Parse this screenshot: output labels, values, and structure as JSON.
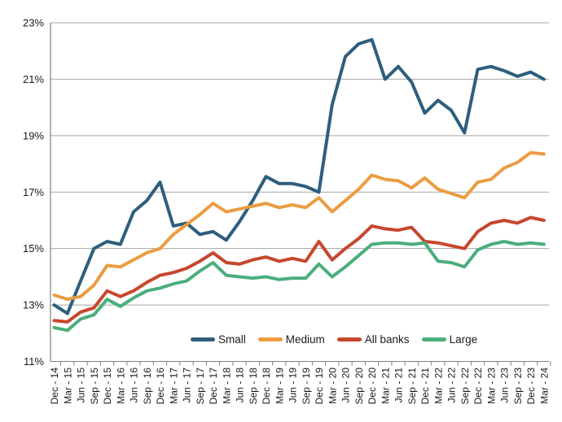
{
  "chart_data": {
    "type": "line",
    "title": "",
    "xlabel": "",
    "ylabel": "",
    "y_axis": {
      "min": 11,
      "max": 23,
      "step": 2,
      "tick_labels": [
        "11%",
        "13%",
        "15%",
        "17%",
        "19%",
        "21%",
        "23%"
      ],
      "format": "percent"
    },
    "grid": true,
    "legend_position": "bottom-center-inside",
    "x_label_rotation": 90,
    "grid_color": "#a6a6a6",
    "axis_color": "#808080",
    "label_color": "#1a1a1a",
    "categories": [
      "Dec - 14",
      "Mar - 15",
      "Jun - 15",
      "Sep - 15",
      "Dec - 15",
      "Mar - 16",
      "Jun - 16",
      "Sep - 16",
      "Dec - 16",
      "Mar - 17",
      "Jun - 17",
      "Sep - 17",
      "Dec - 17",
      "Mar - 18",
      "Jun - 18",
      "Sep - 18",
      "Dec - 18",
      "Mar - 19",
      "Jun - 19",
      "Sep - 19",
      "Dec - 19",
      "Mar - 20",
      "Jun - 20",
      "Sep - 20",
      "Dec - 20",
      "Mar - 21",
      "Jun - 21",
      "Sep - 21",
      "Dec - 21",
      "Mar - 22",
      "Jun - 22",
      "Sep - 22",
      "Dec - 22",
      "Mar - 23",
      "Jun - 23",
      "Sep - 23",
      "Dec - 23",
      "Mar - 24"
    ],
    "series": [
      {
        "name": "Small",
        "color": "#2e5e7e",
        "values": [
          13.0,
          12.7,
          13.85,
          15.0,
          15.25,
          15.15,
          16.3,
          16.7,
          17.35,
          15.8,
          15.9,
          15.5,
          15.6,
          15.3,
          15.95,
          16.7,
          17.55,
          17.3,
          17.3,
          17.2,
          17.0,
          20.1,
          21.8,
          22.25,
          22.4,
          21.0,
          21.45,
          20.9,
          19.8,
          20.25,
          19.9,
          19.1,
          21.35,
          21.45,
          21.3,
          21.1,
          21.25,
          21.0
        ]
      },
      {
        "name": "Medium",
        "color": "#eb9c41",
        "values": [
          13.35,
          13.2,
          13.3,
          13.7,
          14.4,
          14.35,
          14.6,
          14.85,
          15.0,
          15.5,
          15.85,
          16.2,
          16.6,
          16.3,
          16.4,
          16.5,
          16.6,
          16.45,
          16.55,
          16.45,
          16.8,
          16.3,
          16.7,
          17.1,
          17.6,
          17.45,
          17.4,
          17.15,
          17.5,
          17.1,
          16.95,
          16.8,
          17.35,
          17.45,
          17.85,
          18.05,
          18.4,
          18.35
        ]
      },
      {
        "name": "All banks",
        "color": "#c6472e",
        "values": [
          12.45,
          12.4,
          12.75,
          12.9,
          13.5,
          13.3,
          13.5,
          13.8,
          14.05,
          14.15,
          14.3,
          14.55,
          14.85,
          14.5,
          14.45,
          14.6,
          14.7,
          14.55,
          14.65,
          14.55,
          15.25,
          14.6,
          15.0,
          15.35,
          15.8,
          15.7,
          15.65,
          15.75,
          15.25,
          15.2,
          15.1,
          15.0,
          15.6,
          15.9,
          16.0,
          15.9,
          16.1,
          16.0
        ]
      },
      {
        "name": "Large",
        "color": "#4bae7c",
        "values": [
          12.2,
          12.1,
          12.5,
          12.65,
          13.2,
          12.95,
          13.25,
          13.5,
          13.6,
          13.75,
          13.85,
          14.2,
          14.5,
          14.05,
          14.0,
          13.95,
          14.0,
          13.9,
          13.95,
          13.95,
          14.45,
          14.0,
          14.35,
          14.75,
          15.15,
          15.2,
          15.2,
          15.15,
          15.2,
          14.55,
          14.5,
          14.35,
          14.95,
          15.15,
          15.25,
          15.15,
          15.2,
          15.15
        ]
      }
    ]
  }
}
